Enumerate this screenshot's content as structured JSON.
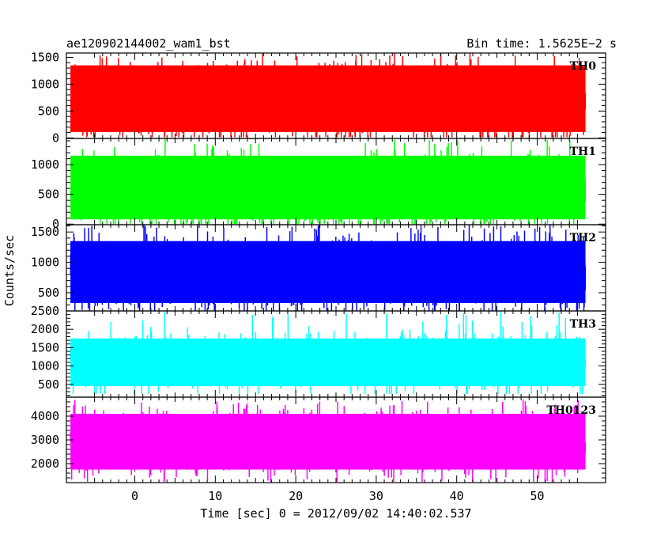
{
  "header": {
    "left_title": "ae120902144002_wam1_bst",
    "right_title": "Bin time: 1.5625E−2 s"
  },
  "chart_data": {
    "type": "line",
    "title": "ae120902144002_wam1_bst",
    "subtitle": "Bin time: 1.5625E−2 s",
    "xlabel": "Time [sec] 0 = 2012/09/02 14:40:02.537",
    "ylabel": "Counts/sec",
    "xlim": [
      -8.5,
      58.5
    ],
    "x_data_range": [
      -8,
      56
    ],
    "x_ticks": [
      0,
      10,
      20,
      30,
      40,
      50
    ],
    "panels": [
      {
        "name": "TH0",
        "color": "#ff0000",
        "ylim": [
          -10,
          1580
        ],
        "y_ticks": [
          0,
          500,
          1000,
          1500
        ],
        "mean": 680,
        "band_low": 110,
        "band_high": 1350,
        "min": 20,
        "max": 1580
      },
      {
        "name": "TH1",
        "color": "#00ff00",
        "ylim": [
          -10,
          1440
        ],
        "y_ticks": [
          0,
          500,
          1000
        ],
        "mean": 560,
        "band_low": 80,
        "band_high": 1150,
        "min": 10,
        "max": 1440
      },
      {
        "name": "TH2",
        "color": "#0000ff",
        "ylim": [
          200,
          1620
        ],
        "y_ticks": [
          500,
          1000,
          1500
        ],
        "mean": 800,
        "band_low": 330,
        "band_high": 1350,
        "min": 210,
        "max": 1620
      },
      {
        "name": "TH3",
        "color": "#00ffff",
        "ylim": [
          150,
          2500
        ],
        "y_ticks": [
          500,
          1000,
          1500,
          2000,
          2500
        ],
        "mean": 1150,
        "band_low": 450,
        "band_high": 1750,
        "min": 250,
        "max": 2500
      },
      {
        "name": "TH0123",
        "color": "#ff00ff",
        "ylim": [
          1200,
          4800
        ],
        "y_ticks": [
          2000,
          3000,
          4000
        ],
        "mean": 2900,
        "band_low": 1750,
        "band_high": 4100,
        "min": 1250,
        "max": 4700
      }
    ]
  }
}
